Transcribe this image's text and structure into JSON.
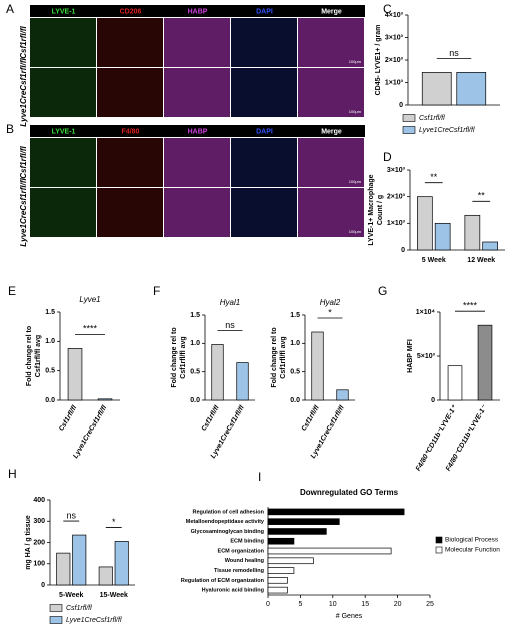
{
  "image_panels": [
    {
      "panel": "A",
      "columns": [
        "LYVE-1",
        "CD206",
        "HABP",
        "DAPI",
        "Merge"
      ],
      "colors": [
        "#3ddc3d",
        "#e02020",
        "#d040e0",
        "#3050ff",
        "#ffffff"
      ],
      "rows": [
        "Csf1rfl/fl",
        "Lyve1CreCsf1rfl/fl"
      ],
      "scale_bar": "100μm"
    },
    {
      "panel": "B",
      "columns": [
        "LYVE-1",
        "F4/80",
        "HABP",
        "DAPI",
        "Merge"
      ],
      "colors": [
        "#3ddc3d",
        "#e02020",
        "#d040e0",
        "#3050ff",
        "#ffffff"
      ],
      "rows": [
        "Csf1rfl/fl",
        "Lyve1CreCsf1rfl/fl"
      ],
      "scale_bar": "100μm"
    }
  ],
  "chart_data": [
    {
      "type": "bar",
      "panel": "C",
      "ylabel": [
        "CD45- LYVE1+ / gram"
      ],
      "categories": [
        null
      ],
      "series": [
        {
          "name": "Csf1rfl/fl",
          "color": "#d0d0d0",
          "values": [
            1450
          ]
        },
        {
          "name": "Lyve1CreCsf1rfl/fl",
          "color": "#9dc3e6",
          "values": [
            1450
          ]
        }
      ],
      "ylim": [
        0,
        4000
      ],
      "yticks": [
        0,
        {
          "value": 1000,
          "label": "1×10³"
        },
        {
          "value": 2000,
          "label": "2×10³"
        },
        {
          "value": 3000,
          "label": "3×10³"
        },
        {
          "value": 4000,
          "label": "4×10³"
        }
      ],
      "annotations": [
        {
          "text": "ns",
          "category": 0
        }
      ],
      "legend": "below"
    },
    {
      "type": "bar",
      "panel": "D",
      "ylabel": [
        "LYVE-1+ Macrophage",
        "Count / g"
      ],
      "categories": [
        "5 Week",
        "12 Week"
      ],
      "series": [
        {
          "color": "#d0d0d0",
          "values": [
            2000,
            1300
          ]
        },
        {
          "color": "#9dc3e6",
          "values": [
            1000,
            300
          ]
        }
      ],
      "ylim": [
        0,
        3000
      ],
      "yticks": [
        0,
        {
          "value": 1000,
          "label": "1×10³"
        },
        {
          "value": 2000,
          "label": "2×10³"
        },
        {
          "value": 3000,
          "label": "3×10³"
        }
      ],
      "annotations": [
        {
          "text": "**",
          "category": 0
        },
        {
          "text": "**",
          "category": 1
        }
      ]
    },
    {
      "type": "bar",
      "panel": "E",
      "title": "Lyve1",
      "ylabel": [
        "Fold change rel to",
        "Csf1rfl/fl avg"
      ],
      "categories": [
        "Csf1rfl/fl",
        "Lyve1CreCsf1rfl/fl"
      ],
      "rotate_labels": true,
      "series": [
        {
          "colors": [
            "#d0d0d0",
            "#9dc3e6"
          ],
          "values": [
            0.88,
            0.02
          ]
        }
      ],
      "ylim": [
        0,
        1.5
      ],
      "yticks": [
        {
          "value": 0,
          "label": "0.0"
        },
        0.5,
        {
          "value": 1,
          "label": "1.0"
        },
        1.5
      ],
      "annotations": [
        {
          "text": "****"
        }
      ]
    },
    {
      "type": "bar",
      "panel": "F",
      "title": "Hyal1",
      "ylabel": [
        "Fold change rel to",
        "Csf1rfl/fl avg"
      ],
      "categories": [
        "Csf1rfl/fl",
        "Lyve1CreCsf1rfl/fl"
      ],
      "rotate_labels": true,
      "series": [
        {
          "colors": [
            "#d0d0d0",
            "#9dc3e6"
          ],
          "values": [
            0.98,
            0.66
          ]
        }
      ],
      "ylim": [
        0,
        1.5
      ],
      "yticks": [
        {
          "value": 0,
          "label": "0.0"
        },
        0.5,
        {
          "value": 1,
          "label": "1.0"
        },
        1.5
      ],
      "annotations": [
        {
          "text": "ns"
        }
      ]
    },
    {
      "type": "bar",
      "title": "Hyal2",
      "ylabel": [
        "Fold change rel to",
        "Csf1rfl/fl avg"
      ],
      "categories": [
        "Csf1rfl/fl",
        "Lyve1CreCsf1rfl/fl"
      ],
      "rotate_labels": true,
      "series": [
        {
          "colors": [
            "#d0d0d0",
            "#9dc3e6"
          ],
          "values": [
            1.2,
            0.18
          ]
        }
      ],
      "ylim": [
        0,
        1.5
      ],
      "yticks": [
        {
          "value": 0,
          "label": "0.0"
        },
        0.5,
        {
          "value": 1,
          "label": "1.0"
        },
        1.5
      ],
      "annotations": [
        {
          "text": "*"
        }
      ]
    },
    {
      "type": "bar",
      "panel": "G",
      "ylabel": [
        "HABP MFI"
      ],
      "categories": [
        "F4/80⁺CD11b⁻LYVE-1⁺",
        "F4/80⁻CD11b⁺LYVE-1⁻"
      ],
      "rotate_labels": true,
      "series": [
        {
          "colors": [
            "#ffffff",
            "#8c8c8c"
          ],
          "values": [
            3900,
            8500
          ]
        }
      ],
      "ylim": [
        0,
        10000
      ],
      "yticks": [
        0,
        {
          "value": 5000,
          "label": "5×10³"
        },
        {
          "value": 10000,
          "label": "1×10⁴"
        }
      ],
      "annotations": [
        {
          "text": "****"
        }
      ]
    },
    {
      "type": "bar",
      "panel": "H",
      "ylabel": [
        "mg HA / g tissue"
      ],
      "categories": [
        "5-Week",
        "15-Week"
      ],
      "series": [
        {
          "name": "Csf1rfl/fl",
          "color": "#d0d0d0",
          "values": [
            150,
            85
          ]
        },
        {
          "name": "Lyve1CreCsf1rfl/fl",
          "color": "#9dc3e6",
          "values": [
            235,
            205
          ]
        }
      ],
      "ylim": [
        0,
        400
      ],
      "yticks": [
        0,
        100,
        200,
        300,
        400
      ],
      "annotations": [
        {
          "text": "ns",
          "category": 0
        },
        {
          "text": "*",
          "category": 1
        }
      ],
      "legend": "below"
    },
    {
      "type": "barh",
      "panel": "I",
      "title": "Downregulated GO Terms",
      "xlabel": "# Genes",
      "categories": [
        "Regulation of cell adhesion",
        "Metalloendopeptidase activity",
        "Glycosaminoglycan binding",
        "ECM binding",
        "ECM organization",
        "Wound healing",
        "Tissue remodelling",
        "Regulation of ECM organization",
        "Hyaluronic acid binding"
      ],
      "series": [
        {
          "name": "Biological Process",
          "color": "#000000",
          "values": [
            21,
            11,
            9,
            4,
            null,
            null,
            null,
            null,
            null
          ]
        },
        {
          "name": "Molecular Function",
          "color": "#ffffff",
          "values": [
            null,
            null,
            null,
            null,
            19,
            7,
            4,
            3,
            3
          ]
        }
      ],
      "xlim": [
        0,
        25
      ],
      "xticks": [
        0,
        5,
        10,
        15,
        20,
        25
      ],
      "legend": "right"
    }
  ]
}
